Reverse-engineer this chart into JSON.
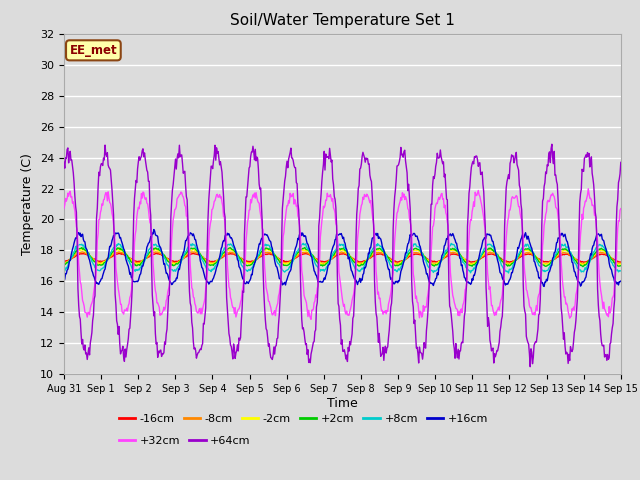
{
  "title": "Soil/Water Temperature Set 1",
  "xlabel": "Time",
  "ylabel": "Temperature (C)",
  "ylim": [
    10,
    32
  ],
  "yticks": [
    10,
    12,
    14,
    16,
    18,
    20,
    22,
    24,
    26,
    28,
    30,
    32
  ],
  "annotation": "EE_met",
  "background_color": "#dcdcdc",
  "plot_bg_color": "#dcdcdc",
  "grid_color": "#ffffff",
  "series": [
    {
      "label": "-16cm",
      "color": "#ff0000",
      "amplitude": 0.25,
      "phase": 0.0,
      "mean": 17.55,
      "trend": -0.003
    },
    {
      "label": "-8cm",
      "color": "#ff8800",
      "amplitude": 0.35,
      "phase": 0.1,
      "mean": 17.55,
      "trend": -0.003
    },
    {
      "label": "-2cm",
      "color": "#ffff00",
      "amplitude": 0.45,
      "phase": 0.15,
      "mean": 17.6,
      "trend": -0.003
    },
    {
      "label": "+2cm",
      "color": "#00cc00",
      "amplitude": 0.55,
      "phase": 0.2,
      "mean": 17.6,
      "trend": -0.003
    },
    {
      "label": "+8cm",
      "color": "#00cccc",
      "amplitude": 0.85,
      "phase": 0.3,
      "mean": 17.55,
      "trend": -0.003
    },
    {
      "label": "+16cm",
      "color": "#0000cc",
      "amplitude": 1.6,
      "phase": 0.5,
      "mean": 17.5,
      "trend": -0.003
    },
    {
      "label": "+32cm",
      "color": "#ff44ff",
      "amplitude": 3.8,
      "phase": 0.7,
      "mean": 17.8,
      "trend": -0.005
    },
    {
      "label": "+64cm",
      "color": "#9900cc",
      "amplitude": 6.5,
      "phase": 0.9,
      "mean": 17.8,
      "trend": -0.008
    }
  ],
  "x_tick_labels": [
    "Aug 31",
    "Sep 1",
    "Sep 2",
    "Sep 3",
    "Sep 4",
    "Sep 5",
    "Sep 6",
    "Sep 7",
    "Sep 8",
    "Sep 9",
    "Sep 10",
    "Sep 11",
    "Sep 12",
    "Sep 13",
    "Sep 14",
    "Sep 15"
  ],
  "n_days": 15,
  "points_per_day": 48
}
